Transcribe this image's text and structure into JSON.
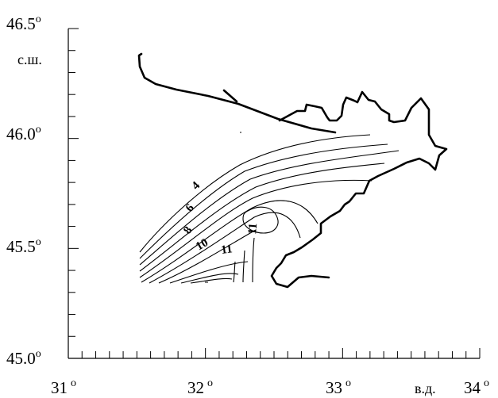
{
  "axes": {
    "y_ticks": [
      {
        "value": "46.5",
        "sup": "o"
      },
      {
        "value": "46.0",
        "sup": "o"
      },
      {
        "value": "45.5",
        "sup": "o"
      },
      {
        "value": "45.0",
        "sup": "o"
      }
    ],
    "y_unit": "с.ш.",
    "x_ticks": [
      {
        "value": "31",
        "sup": "o"
      },
      {
        "value": "32",
        "sup": "o"
      },
      {
        "value": "33",
        "sup": "o"
      },
      {
        "value": "34",
        "sup": "o"
      }
    ],
    "x_unit": "в.д."
  },
  "isoline_labels": [
    "4",
    "6",
    "8",
    "10",
    "11",
    "11"
  ]
}
